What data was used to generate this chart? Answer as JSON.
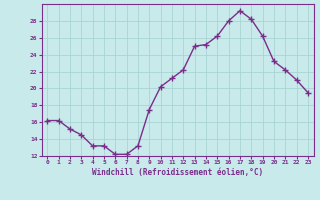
{
  "x": [
    0,
    1,
    2,
    3,
    4,
    5,
    6,
    7,
    8,
    9,
    10,
    11,
    12,
    13,
    14,
    15,
    16,
    17,
    18,
    19,
    20,
    21,
    22,
    23
  ],
  "y": [
    16.2,
    16.2,
    15.2,
    14.5,
    13.2,
    13.2,
    12.2,
    12.2,
    13.2,
    17.5,
    20.2,
    21.2,
    22.2,
    25.0,
    25.2,
    26.2,
    28.0,
    29.2,
    28.2,
    26.2,
    23.2,
    22.2,
    21.0,
    19.5
  ],
  "line_color": "#7b2d8b",
  "marker": "+",
  "bg_color": "#c8eaea",
  "grid_color": "#aad4d4",
  "xlabel": "Windchill (Refroidissement éolien,°C)",
  "xlabel_color": "#7b2d8b",
  "tick_color": "#7b2d8b",
  "ylim": [
    12,
    30
  ],
  "yticks": [
    12,
    14,
    16,
    18,
    20,
    22,
    24,
    26,
    28
  ],
  "xticks": [
    0,
    1,
    2,
    3,
    4,
    5,
    6,
    7,
    8,
    9,
    10,
    11,
    12,
    13,
    14,
    15,
    16,
    17,
    18,
    19,
    20,
    21,
    22,
    23
  ],
  "figsize": [
    3.2,
    2.0
  ],
  "dpi": 100
}
